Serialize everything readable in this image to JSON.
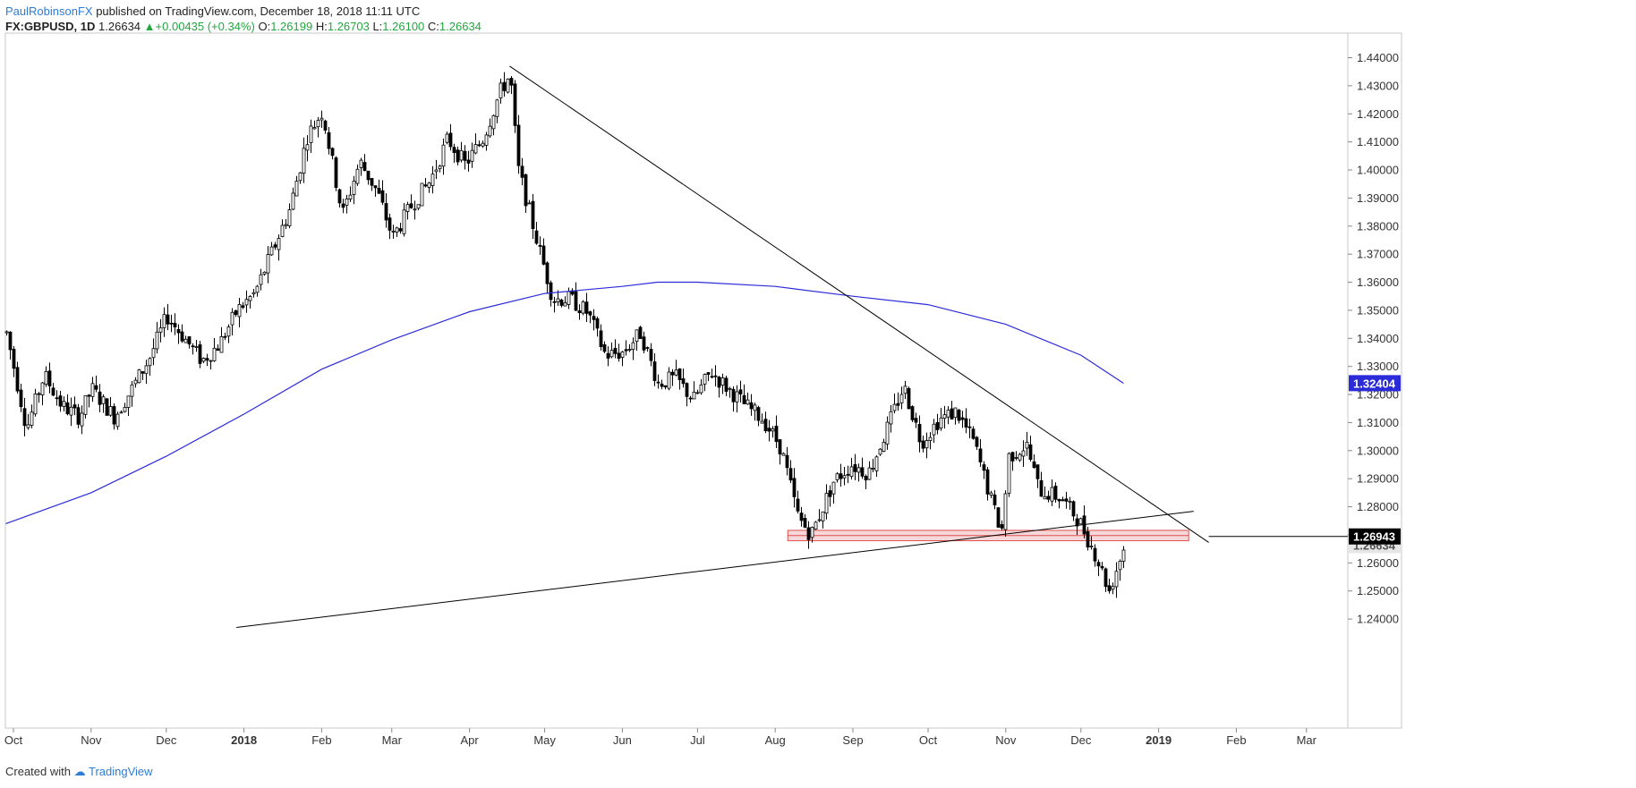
{
  "header": {
    "author": "PaulRobinsonFX",
    "published": "published on TradingView.com, December 18, 2018 11:11 UTC",
    "symbol": "FX:GBPUSD, 1D",
    "last": "1.26634",
    "change": "+0.00435 (+0.34%)",
    "o_label": "O:",
    "o": "1.26199",
    "h_label": "H:",
    "h": "1.26703",
    "l_label": "L:",
    "l": "1.26100",
    "c_label": "C:",
    "c": "1.26634"
  },
  "footer": {
    "created_with": "Created with",
    "brand": "TradingView"
  },
  "colors": {
    "up_body": "#ffffff",
    "down_body": "#000000",
    "wick": "#000000",
    "ma": "#2b2bd9",
    "trendline": "#000000",
    "zone_fill": "#f8d7da",
    "zone_stroke": "#d9534f",
    "ma_label_bg": "#2b2bd9",
    "price_label_bg": "#000000"
  },
  "chart_data": {
    "type": "candlestick",
    "symbol": "GBPUSD",
    "ylim": [
      1.237,
      1.448
    ],
    "y_ticks": [
      "1.44000",
      "1.43000",
      "1.42000",
      "1.41000",
      "1.40000",
      "1.39000",
      "1.38000",
      "1.37000",
      "1.36000",
      "1.35000",
      "1.34000",
      "1.33000",
      "1.32000",
      "1.31000",
      "1.30000",
      "1.29000",
      "1.28000",
      "1.27000",
      "1.26000",
      "1.25000",
      "1.24000"
    ],
    "x_ticks": [
      {
        "label": "Oct",
        "date": "2017-10-01",
        "bold": false
      },
      {
        "label": "Nov",
        "date": "2017-11-01",
        "bold": false
      },
      {
        "label": "Dec",
        "date": "2017-12-01",
        "bold": false
      },
      {
        "label": "2018",
        "date": "2018-01-01",
        "bold": true
      },
      {
        "label": "Feb",
        "date": "2018-02-01",
        "bold": false
      },
      {
        "label": "Mar",
        "date": "2018-03-01",
        "bold": false
      },
      {
        "label": "Apr",
        "date": "2018-04-01",
        "bold": false
      },
      {
        "label": "May",
        "date": "2018-05-01",
        "bold": false
      },
      {
        "label": "Jun",
        "date": "2018-06-01",
        "bold": false
      },
      {
        "label": "Jul",
        "date": "2018-07-01",
        "bold": false
      },
      {
        "label": "Aug",
        "date": "2018-08-01",
        "bold": false
      },
      {
        "label": "Sep",
        "date": "2018-09-01",
        "bold": false
      },
      {
        "label": "Oct",
        "date": "2018-10-01",
        "bold": false
      },
      {
        "label": "Nov",
        "date": "2018-11-01",
        "bold": false
      },
      {
        "label": "Dec",
        "date": "2018-12-01",
        "bold": false
      },
      {
        "label": "2019",
        "date": "2019-01-01",
        "bold": true
      },
      {
        "label": "Feb",
        "date": "2019-02-01",
        "bold": false
      },
      {
        "label": "Mar",
        "date": "2019-03-01",
        "bold": false
      }
    ],
    "price_path": [
      {
        "date": "2017-09-28",
        "close": 1.342
      },
      {
        "date": "2017-10-06",
        "close": 1.308
      },
      {
        "date": "2017-10-13",
        "close": 1.327
      },
      {
        "date": "2017-10-20",
        "close": 1.316
      },
      {
        "date": "2017-10-27",
        "close": 1.312
      },
      {
        "date": "2017-11-01",
        "close": 1.322
      },
      {
        "date": "2017-11-10",
        "close": 1.312
      },
      {
        "date": "2017-11-17",
        "close": 1.322
      },
      {
        "date": "2017-11-24",
        "close": 1.333
      },
      {
        "date": "2017-12-01",
        "close": 1.348
      },
      {
        "date": "2017-12-08",
        "close": 1.34
      },
      {
        "date": "2017-12-15",
        "close": 1.332
      },
      {
        "date": "2017-12-22",
        "close": 1.338
      },
      {
        "date": "2017-12-29",
        "close": 1.35
      },
      {
        "date": "2018-01-05",
        "close": 1.356
      },
      {
        "date": "2018-01-12",
        "close": 1.371
      },
      {
        "date": "2018-01-19",
        "close": 1.386
      },
      {
        "date": "2018-01-26",
        "close": 1.412
      },
      {
        "date": "2018-02-01",
        "close": 1.421
      },
      {
        "date": "2018-02-09",
        "close": 1.384
      },
      {
        "date": "2018-02-16",
        "close": 1.403
      },
      {
        "date": "2018-02-23",
        "close": 1.392
      },
      {
        "date": "2018-03-01",
        "close": 1.376
      },
      {
        "date": "2018-03-09",
        "close": 1.388
      },
      {
        "date": "2018-03-16",
        "close": 1.396
      },
      {
        "date": "2018-03-23",
        "close": 1.411
      },
      {
        "date": "2018-03-30",
        "close": 1.402
      },
      {
        "date": "2018-04-06",
        "close": 1.411
      },
      {
        "date": "2018-04-13",
        "close": 1.428
      },
      {
        "date": "2018-04-17",
        "close": 1.434
      },
      {
        "date": "2018-04-20",
        "close": 1.401
      },
      {
        "date": "2018-04-27",
        "close": 1.377
      },
      {
        "date": "2018-05-04",
        "close": 1.354
      },
      {
        "date": "2018-05-11",
        "close": 1.354
      },
      {
        "date": "2018-05-18",
        "close": 1.349
      },
      {
        "date": "2018-05-25",
        "close": 1.334
      },
      {
        "date": "2018-06-01",
        "close": 1.335
      },
      {
        "date": "2018-06-08",
        "close": 1.342
      },
      {
        "date": "2018-06-15",
        "close": 1.324
      },
      {
        "date": "2018-06-22",
        "close": 1.326
      },
      {
        "date": "2018-06-29",
        "close": 1.318
      },
      {
        "date": "2018-07-06",
        "close": 1.328
      },
      {
        "date": "2018-07-13",
        "close": 1.322
      },
      {
        "date": "2018-07-20",
        "close": 1.316
      },
      {
        "date": "2018-07-27",
        "close": 1.311
      },
      {
        "date": "2018-08-03",
        "close": 1.301
      },
      {
        "date": "2018-08-10",
        "close": 1.276
      },
      {
        "date": "2018-08-15",
        "close": 1.27
      },
      {
        "date": "2018-08-24",
        "close": 1.289
      },
      {
        "date": "2018-08-31",
        "close": 1.295
      },
      {
        "date": "2018-09-07",
        "close": 1.292
      },
      {
        "date": "2018-09-14",
        "close": 1.307
      },
      {
        "date": "2018-09-21",
        "close": 1.323
      },
      {
        "date": "2018-09-28",
        "close": 1.303
      },
      {
        "date": "2018-10-05",
        "close": 1.311
      },
      {
        "date": "2018-10-12",
        "close": 1.314
      },
      {
        "date": "2018-10-19",
        "close": 1.303
      },
      {
        "date": "2018-10-26",
        "close": 1.282
      },
      {
        "date": "2018-10-30",
        "close": 1.271
      },
      {
        "date": "2018-11-02",
        "close": 1.298
      },
      {
        "date": "2018-11-09",
        "close": 1.302
      },
      {
        "date": "2018-11-14",
        "close": 1.286
      },
      {
        "date": "2018-11-23",
        "close": 1.283
      },
      {
        "date": "2018-11-30",
        "close": 1.275
      },
      {
        "date": "2018-12-07",
        "close": 1.262
      },
      {
        "date": "2018-12-12",
        "close": 1.25
      },
      {
        "date": "2018-12-18",
        "close": 1.266
      }
    ],
    "ma200": [
      {
        "date": "2017-09-28",
        "value": 1.274
      },
      {
        "date": "2017-11-01",
        "value": 1.285
      },
      {
        "date": "2017-12-01",
        "value": 1.298
      },
      {
        "date": "2018-01-01",
        "value": 1.313
      },
      {
        "date": "2018-02-01",
        "value": 1.329
      },
      {
        "date": "2018-03-01",
        "value": 1.3395
      },
      {
        "date": "2018-04-01",
        "value": 1.3495
      },
      {
        "date": "2018-05-01",
        "value": 1.356
      },
      {
        "date": "2018-06-01",
        "value": 1.3585
      },
      {
        "date": "2018-06-15",
        "value": 1.36
      },
      {
        "date": "2018-07-01",
        "value": 1.36
      },
      {
        "date": "2018-08-01",
        "value": 1.3585
      },
      {
        "date": "2018-09-01",
        "value": 1.355
      },
      {
        "date": "2018-10-01",
        "value": 1.352
      },
      {
        "date": "2018-11-01",
        "value": 1.345
      },
      {
        "date": "2018-12-01",
        "value": 1.334
      },
      {
        "date": "2018-12-18",
        "value": 1.324
      }
    ],
    "trendlines": [
      {
        "name": "down",
        "from": {
          "date": "2018-04-17",
          "price": 1.437
        },
        "to": {
          "date": "2019-01-21",
          "price": 1.2673
        }
      },
      {
        "name": "up",
        "from": {
          "date": "2017-12-29",
          "price": 1.237
        },
        "to": {
          "date": "2019-01-15",
          "price": 1.2784
        }
      },
      {
        "name": "horizontal",
        "from": {
          "date": "2019-01-21",
          "price": 1.26943
        },
        "to": {
          "date": "2019-03-31",
          "price": 1.26943
        }
      }
    ],
    "zone": {
      "from_date": "2018-08-06",
      "to_date": "2019-01-13",
      "top": 1.2716,
      "bottom": 1.2679
    },
    "price_labels": [
      {
        "value": "1.32404",
        "price": 1.32404,
        "color": "ma"
      },
      {
        "value": "1.26943",
        "price": 1.26943,
        "color": "black"
      },
      {
        "value": "1.26634",
        "price": 1.26634,
        "color": "grey"
      }
    ]
  }
}
